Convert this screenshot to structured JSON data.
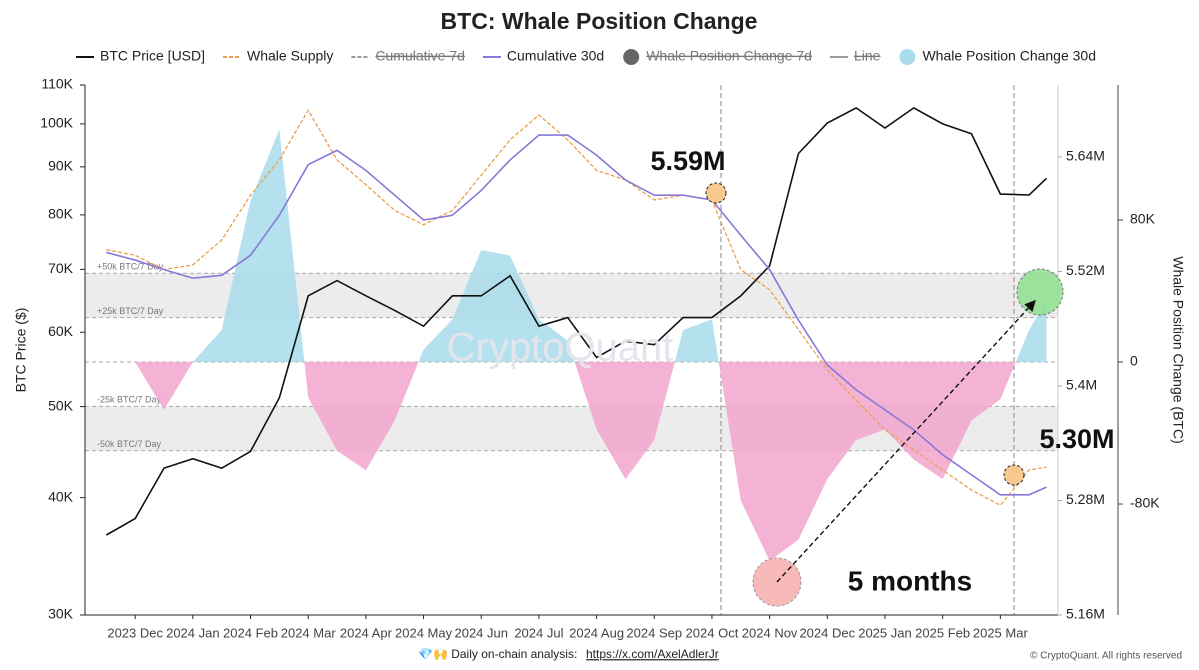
{
  "chart_data": {
    "type": "line",
    "title": "BTC: Whale Position Change",
    "y_label": "BTC Price ($)",
    "y3_label": "Whale Position Change (BTC)",
    "ylog": true,
    "ylim": [
      30000,
      110000
    ],
    "yticks": [
      {
        "value": 30000,
        "label": "30K"
      },
      {
        "value": 40000,
        "label": "40K"
      },
      {
        "value": 50000,
        "label": "50K"
      },
      {
        "value": 60000,
        "label": "60K"
      },
      {
        "value": 70000,
        "label": "70K"
      },
      {
        "value": 80000,
        "label": "80K"
      },
      {
        "value": 90000,
        "label": "90K"
      },
      {
        "value": 100000,
        "label": "100K"
      },
      {
        "value": 110000,
        "label": "110K"
      }
    ],
    "y2lim": [
      5160000,
      5715500
    ],
    "y2ticks": [
      {
        "value": 5160000,
        "label": "5.16M"
      },
      {
        "value": 5280000,
        "label": "5.28M"
      },
      {
        "value": 5400000,
        "label": "5.4M"
      },
      {
        "value": 5520000,
        "label": "5.52M"
      },
      {
        "value": 5640000,
        "label": "5.64M"
      }
    ],
    "y3lim": [
      -142500,
      156000
    ],
    "y3ticks": [
      {
        "value": 80000,
        "label": "80K"
      },
      0,
      {
        "value": -80000,
        "label": "-80K"
      }
    ],
    "xlim": [
      -0.87,
      16.0
    ],
    "xticks": [
      {
        "value": 0,
        "label": "2023 Dec"
      },
      {
        "value": 1,
        "label": "2024 Jan"
      },
      {
        "value": 2,
        "label": "2024 Feb"
      },
      {
        "value": 3,
        "label": "2024 Mar"
      },
      {
        "value": 4,
        "label": "2024 Apr"
      },
      {
        "value": 5,
        "label": "2024 May"
      },
      {
        "value": 6,
        "label": "2024 Jun"
      },
      {
        "value": 7,
        "label": "2024 Jul"
      },
      {
        "value": 8,
        "label": "2024 Aug"
      },
      {
        "value": 9,
        "label": "2024 Sep"
      },
      {
        "value": 10,
        "label": "2024 Oct"
      },
      {
        "value": 11,
        "label": "2024 Nov"
      },
      {
        "value": 12,
        "label": "2024 Dec"
      },
      {
        "value": 13,
        "label": "2025 Jan"
      },
      {
        "value": 14,
        "label": "2025 Feb"
      },
      {
        "value": 15,
        "label": "2025 Mar"
      }
    ],
    "x": [
      -0.5,
      0,
      0.5,
      1,
      1.5,
      2,
      2.5,
      3,
      3.5,
      4,
      4.5,
      5,
      5.5,
      6,
      6.5,
      7,
      7.5,
      8,
      8.5,
      9,
      9.5,
      10,
      10.5,
      11,
      11.5,
      12,
      12.5,
      13,
      13.5,
      14,
      14.5,
      15,
      15.5,
      15.8
    ],
    "series": [
      {
        "name": "BTC Price [USD]",
        "color": "#111111",
        "style": "solid",
        "axis": "y",
        "values": [
          36500,
          38000,
          43000,
          44000,
          43000,
          44800,
          51100,
          65600,
          68100,
          65600,
          63300,
          60900,
          65600,
          65600,
          68900,
          60900,
          62200,
          56400,
          58700,
          58200,
          62200,
          62200,
          65600,
          70600,
          93000,
          100200,
          104000,
          99000,
          104000,
          100000,
          97600,
          84200,
          84000,
          87500
        ]
      },
      {
        "name": "Whale Supply",
        "color": "#e8a050",
        "style": "dashed",
        "axis": "y2",
        "values": [
          5543000,
          5537000,
          5522000,
          5527000,
          5553000,
          5600000,
          5637000,
          5689000,
          5637000,
          5611000,
          5584000,
          5569000,
          5584000,
          5621000,
          5658000,
          5684000,
          5658000,
          5626000,
          5616000,
          5595000,
          5600000,
          5595000,
          5522000,
          5501000,
          5459000,
          5417000,
          5385000,
          5354000,
          5333000,
          5312000,
          5291000,
          5275000,
          5312000,
          5315000
        ]
      },
      {
        "name": "Cumulative 7d",
        "color": "#999999",
        "style": "dashed",
        "visible": false
      },
      {
        "name": "Cumulative 30d",
        "color": "#8878d8",
        "style": "solid",
        "axis": "y2",
        "values": [
          5540000,
          5532000,
          5522000,
          5513000,
          5516000,
          5537000,
          5579000,
          5632000,
          5647000,
          5626000,
          5600000,
          5574000,
          5579000,
          5605000,
          5637000,
          5663000,
          5663000,
          5642000,
          5616000,
          5600000,
          5600000,
          5595000,
          5558000,
          5522000,
          5469000,
          5422000,
          5396000,
          5375000,
          5354000,
          5328000,
          5307000,
          5286000,
          5286000,
          5294000
        ]
      },
      {
        "name": "Whale Position Change 7d",
        "color": "#666666",
        "style": "dot",
        "visible": false
      },
      {
        "name": "Line",
        "color": "#999999",
        "style": "solid",
        "visible": false
      },
      {
        "name": "Whale Position Change 30d",
        "color": "#a8dcec",
        "negative_color": "#f2a6cc",
        "style": "area",
        "axis": "y3",
        "values": [
          0,
          0,
          -27000,
          0,
          18000,
          91000,
          131000,
          -20000,
          -50000,
          -61000,
          -33000,
          7000,
          24000,
          63000,
          60000,
          24000,
          12000,
          -38000,
          -66000,
          -44000,
          18000,
          24000,
          -78000,
          -112000,
          -100000,
          -66000,
          -44000,
          -38000,
          -55000,
          -66000,
          -33000,
          -21000,
          18000,
          35000
        ]
      }
    ],
    "bands": [
      {
        "value": 50000,
        "label": "+50k BTC/7 Day"
      },
      {
        "value": 25000,
        "label": "+25k BTC/7 Day"
      },
      {
        "value": -25000,
        "label": "-25k BTC/7 Day"
      },
      {
        "value": -50000,
        "label": "-50k BTC/7 Day"
      }
    ],
    "annotations": [
      "5.59M",
      "5.30M",
      "5 months"
    ],
    "watermark": "CryptoQuant",
    "footer": {
      "text": "💎🙌 Daily on-chain analysis:",
      "link": "https://x.com/AxelAdlerJr",
      "copyright": "© CryptoQuant. All rights reserved"
    }
  }
}
